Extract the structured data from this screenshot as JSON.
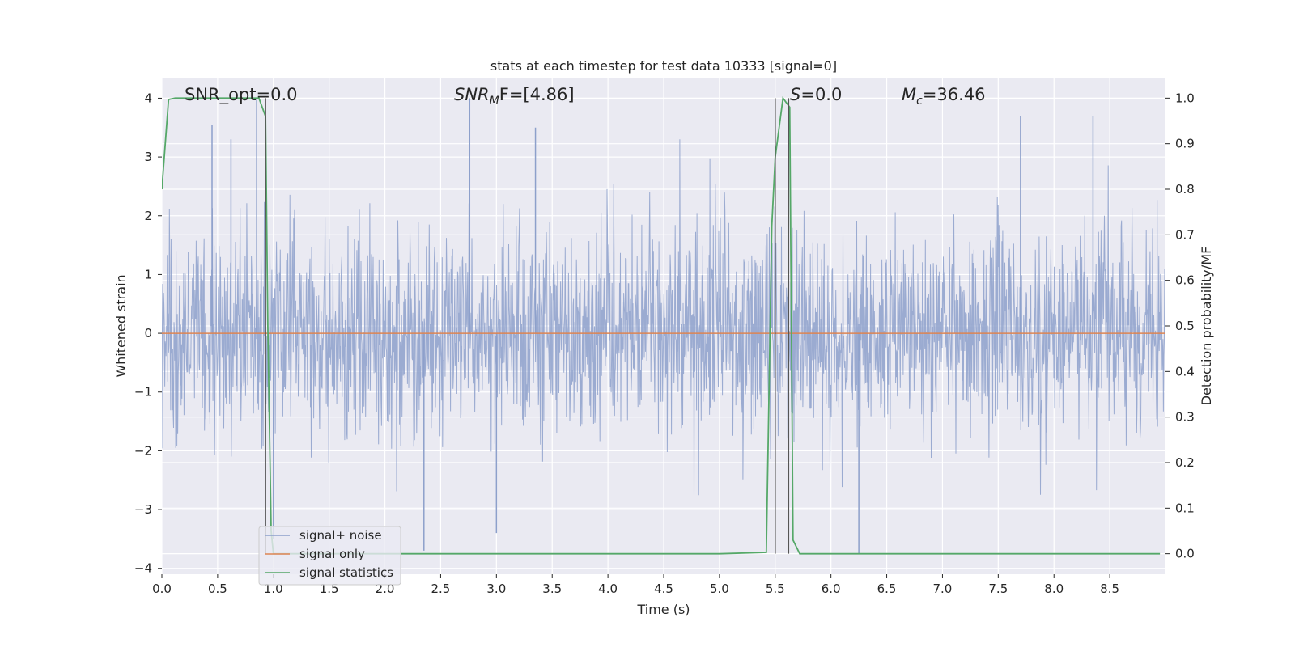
{
  "chart_data": {
    "type": "line",
    "title": "stats at each timestep for test data 10333 [signal=0]",
    "xlabel": "Time (s)",
    "ylabel_left": "Whitened strain",
    "ylabel_right": "Detection probability/MF",
    "xlim": [
      0,
      9.0
    ],
    "ylim_left": [
      -4.1,
      4.35
    ],
    "ylim_right": [
      -0.045,
      1.045
    ],
    "x_ticks": [
      "0.0",
      "0.5",
      "1.0",
      "1.5",
      "2.0",
      "2.5",
      "3.0",
      "3.5",
      "4.0",
      "4.5",
      "5.0",
      "5.5",
      "6.0",
      "6.5",
      "7.0",
      "7.5",
      "8.0",
      "8.5"
    ],
    "x_tick_values": [
      0,
      0.5,
      1.0,
      1.5,
      2.0,
      2.5,
      3.0,
      3.5,
      4.0,
      4.5,
      5.0,
      5.5,
      6.0,
      6.5,
      7.0,
      7.5,
      8.0,
      8.5
    ],
    "y_left_ticks": [
      "4",
      "3",
      "2",
      "1",
      "0",
      "−1",
      "−2",
      "−3",
      "−4"
    ],
    "y_left_tick_values": [
      4,
      3,
      2,
      1,
      0,
      -1,
      -2,
      -3,
      -4
    ],
    "y_right_ticks": [
      "1.0",
      "0.9",
      "0.8",
      "0.7",
      "0.6",
      "0.5",
      "0.4",
      "0.3",
      "0.2",
      "0.1",
      "0.0"
    ],
    "y_right_tick_values": [
      1.0,
      0.9,
      0.8,
      0.7,
      0.6,
      0.5,
      0.4,
      0.3,
      0.2,
      0.1,
      0.0
    ],
    "grid": true,
    "legend_position": "lower-left",
    "annotations": {
      "snr_opt": "SNR_opt=0.0",
      "snr_mf_main": "SNR",
      "snr_mf_sub": "M",
      "snr_mf_rest": "F=[4.86]",
      "s_main": "S",
      "s_rest": "=0.0",
      "mc_main": "M",
      "mc_sub": "c",
      "mc_rest": "=36.46"
    },
    "vertical_lines_x": [
      0.93,
      5.5,
      5.62
    ],
    "series": [
      {
        "name": "signal+ noise",
        "color": "#8da0cb",
        "axis": "left",
        "description_level": "noise approx ±1.6 with spikes up to ±4",
        "noise_amplitude": 1.6,
        "peak_values": [
          [
            0.45,
            3.55
          ],
          [
            0.62,
            3.3
          ],
          [
            0.85,
            4.0
          ],
          [
            2.76,
            4.0
          ],
          [
            1.0,
            -3.5
          ],
          [
            2.35,
            -3.7
          ],
          [
            3.0,
            -3.4
          ],
          [
            6.25,
            -3.75
          ],
          [
            7.7,
            3.7
          ],
          [
            8.35,
            3.7
          ],
          [
            3.35,
            3.5
          ]
        ]
      },
      {
        "name": "signal only",
        "color": "#dd8452",
        "axis": "left",
        "x": [
          0,
          9.0
        ],
        "y": [
          0,
          0
        ]
      },
      {
        "name": "signal statistics",
        "color": "#55a868",
        "axis": "right",
        "x": [
          0,
          0.06,
          0.12,
          0.5,
          0.87,
          0.93,
          0.95,
          0.98,
          1.0,
          2.0,
          3.0,
          4.0,
          5.0,
          5.42,
          5.47,
          5.5,
          5.57,
          5.63,
          5.66,
          5.72,
          6.0,
          7.0,
          8.0,
          8.95
        ],
        "y": [
          0.8,
          0.997,
          1.0,
          1.0,
          1.0,
          0.96,
          0.5,
          0.05,
          0.0,
          0.0,
          0.0,
          0.0,
          0.0,
          0.003,
          0.72,
          0.87,
          1.0,
          0.98,
          0.03,
          0.0,
          0.0,
          0.0,
          0.0,
          0.0
        ]
      }
    ]
  }
}
